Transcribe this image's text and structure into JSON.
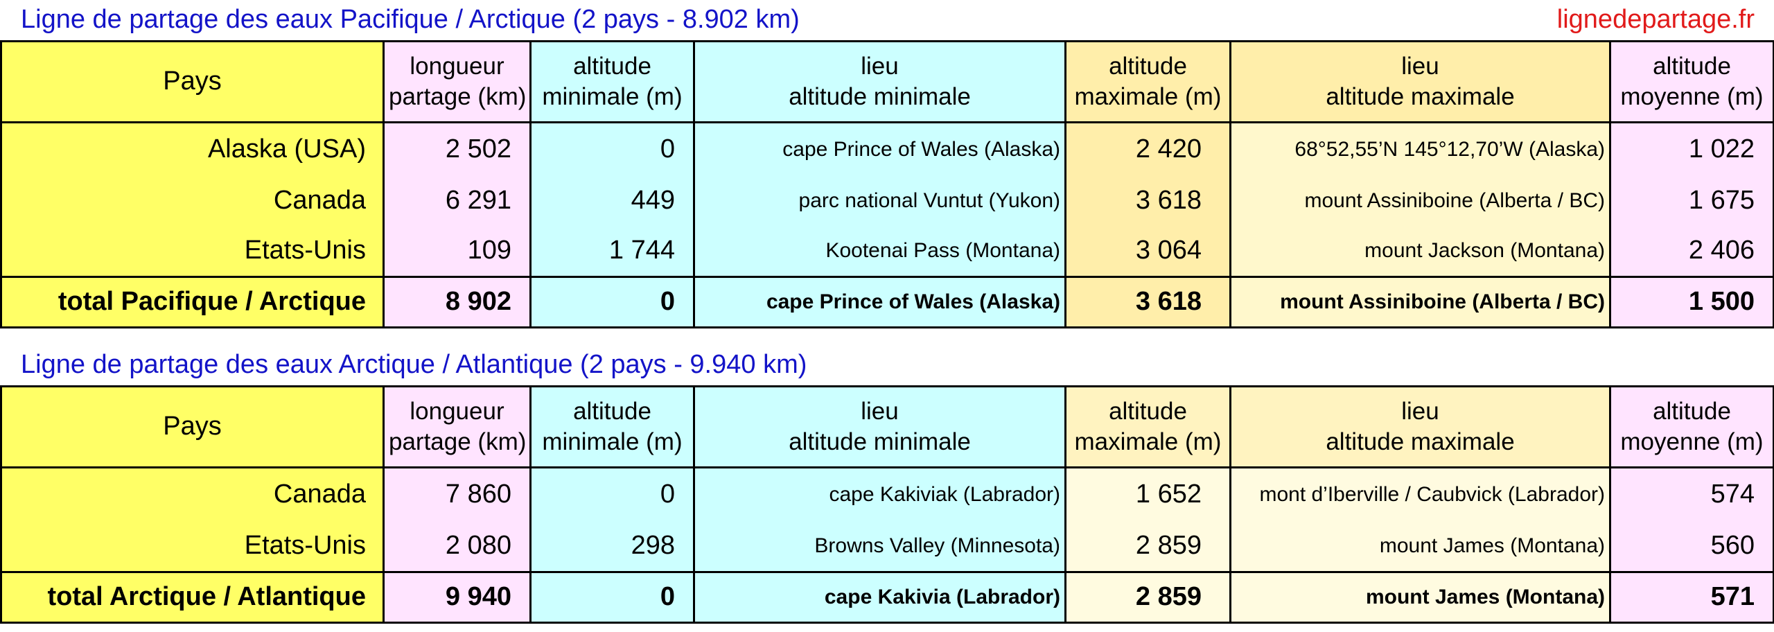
{
  "site": "lignedepartage.fr",
  "tables": [
    {
      "title": "Ligne de partage des eaux Pacifique / Arctique (2 pays - 8.902 km)",
      "headers": {
        "pays": "Pays",
        "longueur": [
          "longueur",
          "partage (km)"
        ],
        "alt_min": [
          "altitude",
          "minimale (m)"
        ],
        "lieu_min": [
          "lieu",
          "altitude minimale"
        ],
        "alt_max": [
          "altitude",
          "maximale (m)"
        ],
        "lieu_max": [
          "lieu",
          "altitude maximale"
        ],
        "alt_moy": [
          "altitude",
          "moyenne (m)"
        ]
      },
      "rows": [
        {
          "pays": "Alaska (USA)",
          "longueur": "2 502",
          "alt_min": "0",
          "lieu_min": "cape Prince of Wales (Alaska)",
          "alt_max": "2 420",
          "lieu_max": "68°52,55’N 145°12,70’W (Alaska)",
          "alt_moy": "1 022"
        },
        {
          "pays": "Canada",
          "longueur": "6 291",
          "alt_min": "449",
          "lieu_min": "parc national Vuntut (Yukon)",
          "alt_max": "3 618",
          "lieu_max": "mount Assiniboine (Alberta / BC)",
          "alt_moy": "1 675"
        },
        {
          "pays": "Etats-Unis",
          "longueur": "109",
          "alt_min": "1 744",
          "lieu_min": "Kootenai Pass (Montana)",
          "alt_max": "3 064",
          "lieu_max": "mount Jackson (Montana)",
          "alt_moy": "2 406"
        }
      ],
      "total": {
        "pays": "total Pacifique / Arctique",
        "longueur": "8 902",
        "alt_min": "0",
        "lieu_min": "cape Prince of Wales (Alaska)",
        "alt_max": "3 618",
        "lieu_max": "mount Assiniboine (Alberta / BC)",
        "alt_moy": "1 500"
      }
    },
    {
      "title": "Ligne de partage des eaux Arctique / Atlantique (2 pays - 9.940 km)",
      "headers": {
        "pays": "Pays",
        "longueur": [
          "longueur",
          "partage (km)"
        ],
        "alt_min": [
          "altitude",
          "minimale (m)"
        ],
        "lieu_min": [
          "lieu",
          "altitude minimale"
        ],
        "alt_max": [
          "altitude",
          "maximale (m)"
        ],
        "lieu_max": [
          "lieu",
          "altitude maximale"
        ],
        "alt_moy": [
          "altitude",
          "moyenne (m)"
        ]
      },
      "rows": [
        {
          "pays": "Canada",
          "longueur": "7 860",
          "alt_min": "0",
          "lieu_min": "cape Kakiviak (Labrador)",
          "alt_max": "1 652",
          "lieu_max": "mont d’Iberville / Caubvick (Labrador)",
          "alt_moy": "574"
        },
        {
          "pays": "Etats-Unis",
          "longueur": "2 080",
          "alt_min": "298",
          "lieu_min": "Browns Valley (Minnesota)",
          "alt_max": "2 859",
          "lieu_max": "mount James (Montana)",
          "alt_moy": "560"
        }
      ],
      "total": {
        "pays": "total Arctique / Atlantique",
        "longueur": "9 940",
        "alt_min": "0",
        "lieu_min": "cape Kakivia (Labrador)",
        "alt_max": "2 859",
        "lieu_max": "mount James (Montana)",
        "alt_moy": "571"
      }
    }
  ],
  "colors": {
    "pays": "#ffff66",
    "longueur": "#ffe4ff",
    "minimale": "#ccffff",
    "maximale_table1": "#ffeeaa",
    "maximale_table2": "#fff3c0",
    "moyenne": "#ffe4ff",
    "title": "#1313c8",
    "site": "#e11a1a"
  }
}
